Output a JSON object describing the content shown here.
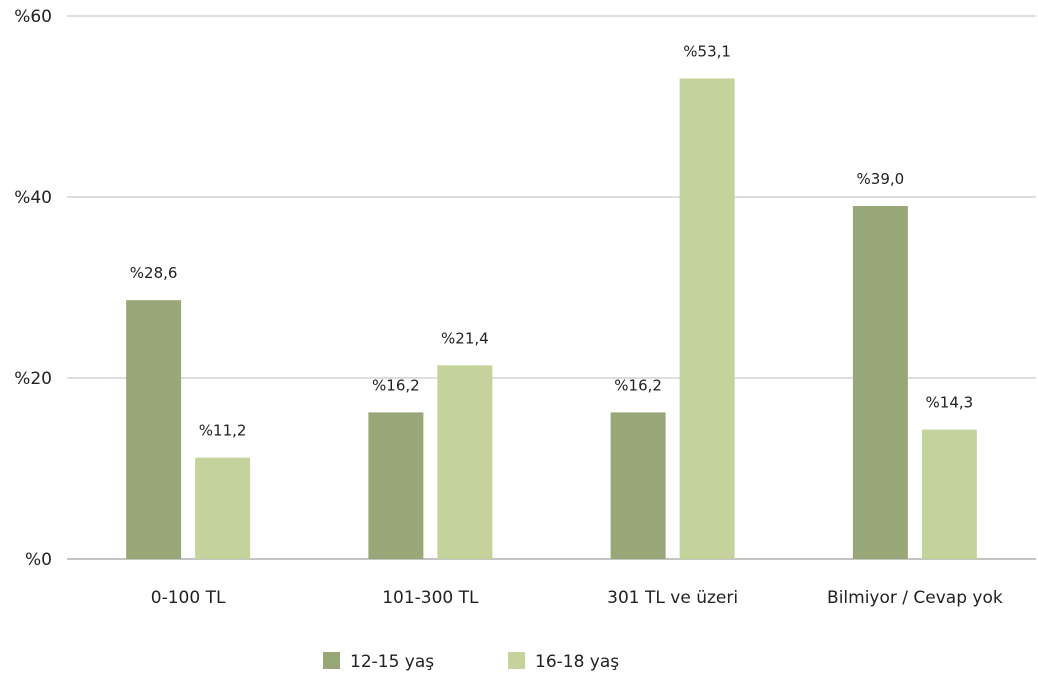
{
  "chart_data": {
    "type": "bar",
    "categories": [
      "0-100 TL",
      "101-300 TL",
      "301 TL ve üzeri",
      "Bilmiyor / Cevap yok"
    ],
    "series": [
      {
        "name": "12-15 yaş",
        "color": "#98a777",
        "values": [
          28.6,
          16.2,
          16.2,
          39.0
        ],
        "labels": [
          "%28,6",
          "%16,2",
          "%16,2",
          "%39,0"
        ]
      },
      {
        "name": "16-18 yaş",
        "color": "#c4d29c",
        "values": [
          11.2,
          21.4,
          53.1,
          14.3
        ],
        "labels": [
          "%11,2",
          "%21,4",
          "%53,1",
          "%14,3"
        ]
      }
    ],
    "ylim": [
      0,
      60
    ],
    "yticks": [
      0,
      20,
      40,
      60
    ],
    "ytick_labels": [
      "%0",
      "%20",
      "%40",
      "%60"
    ],
    "grid": true,
    "legend_position": "bottom-center"
  }
}
